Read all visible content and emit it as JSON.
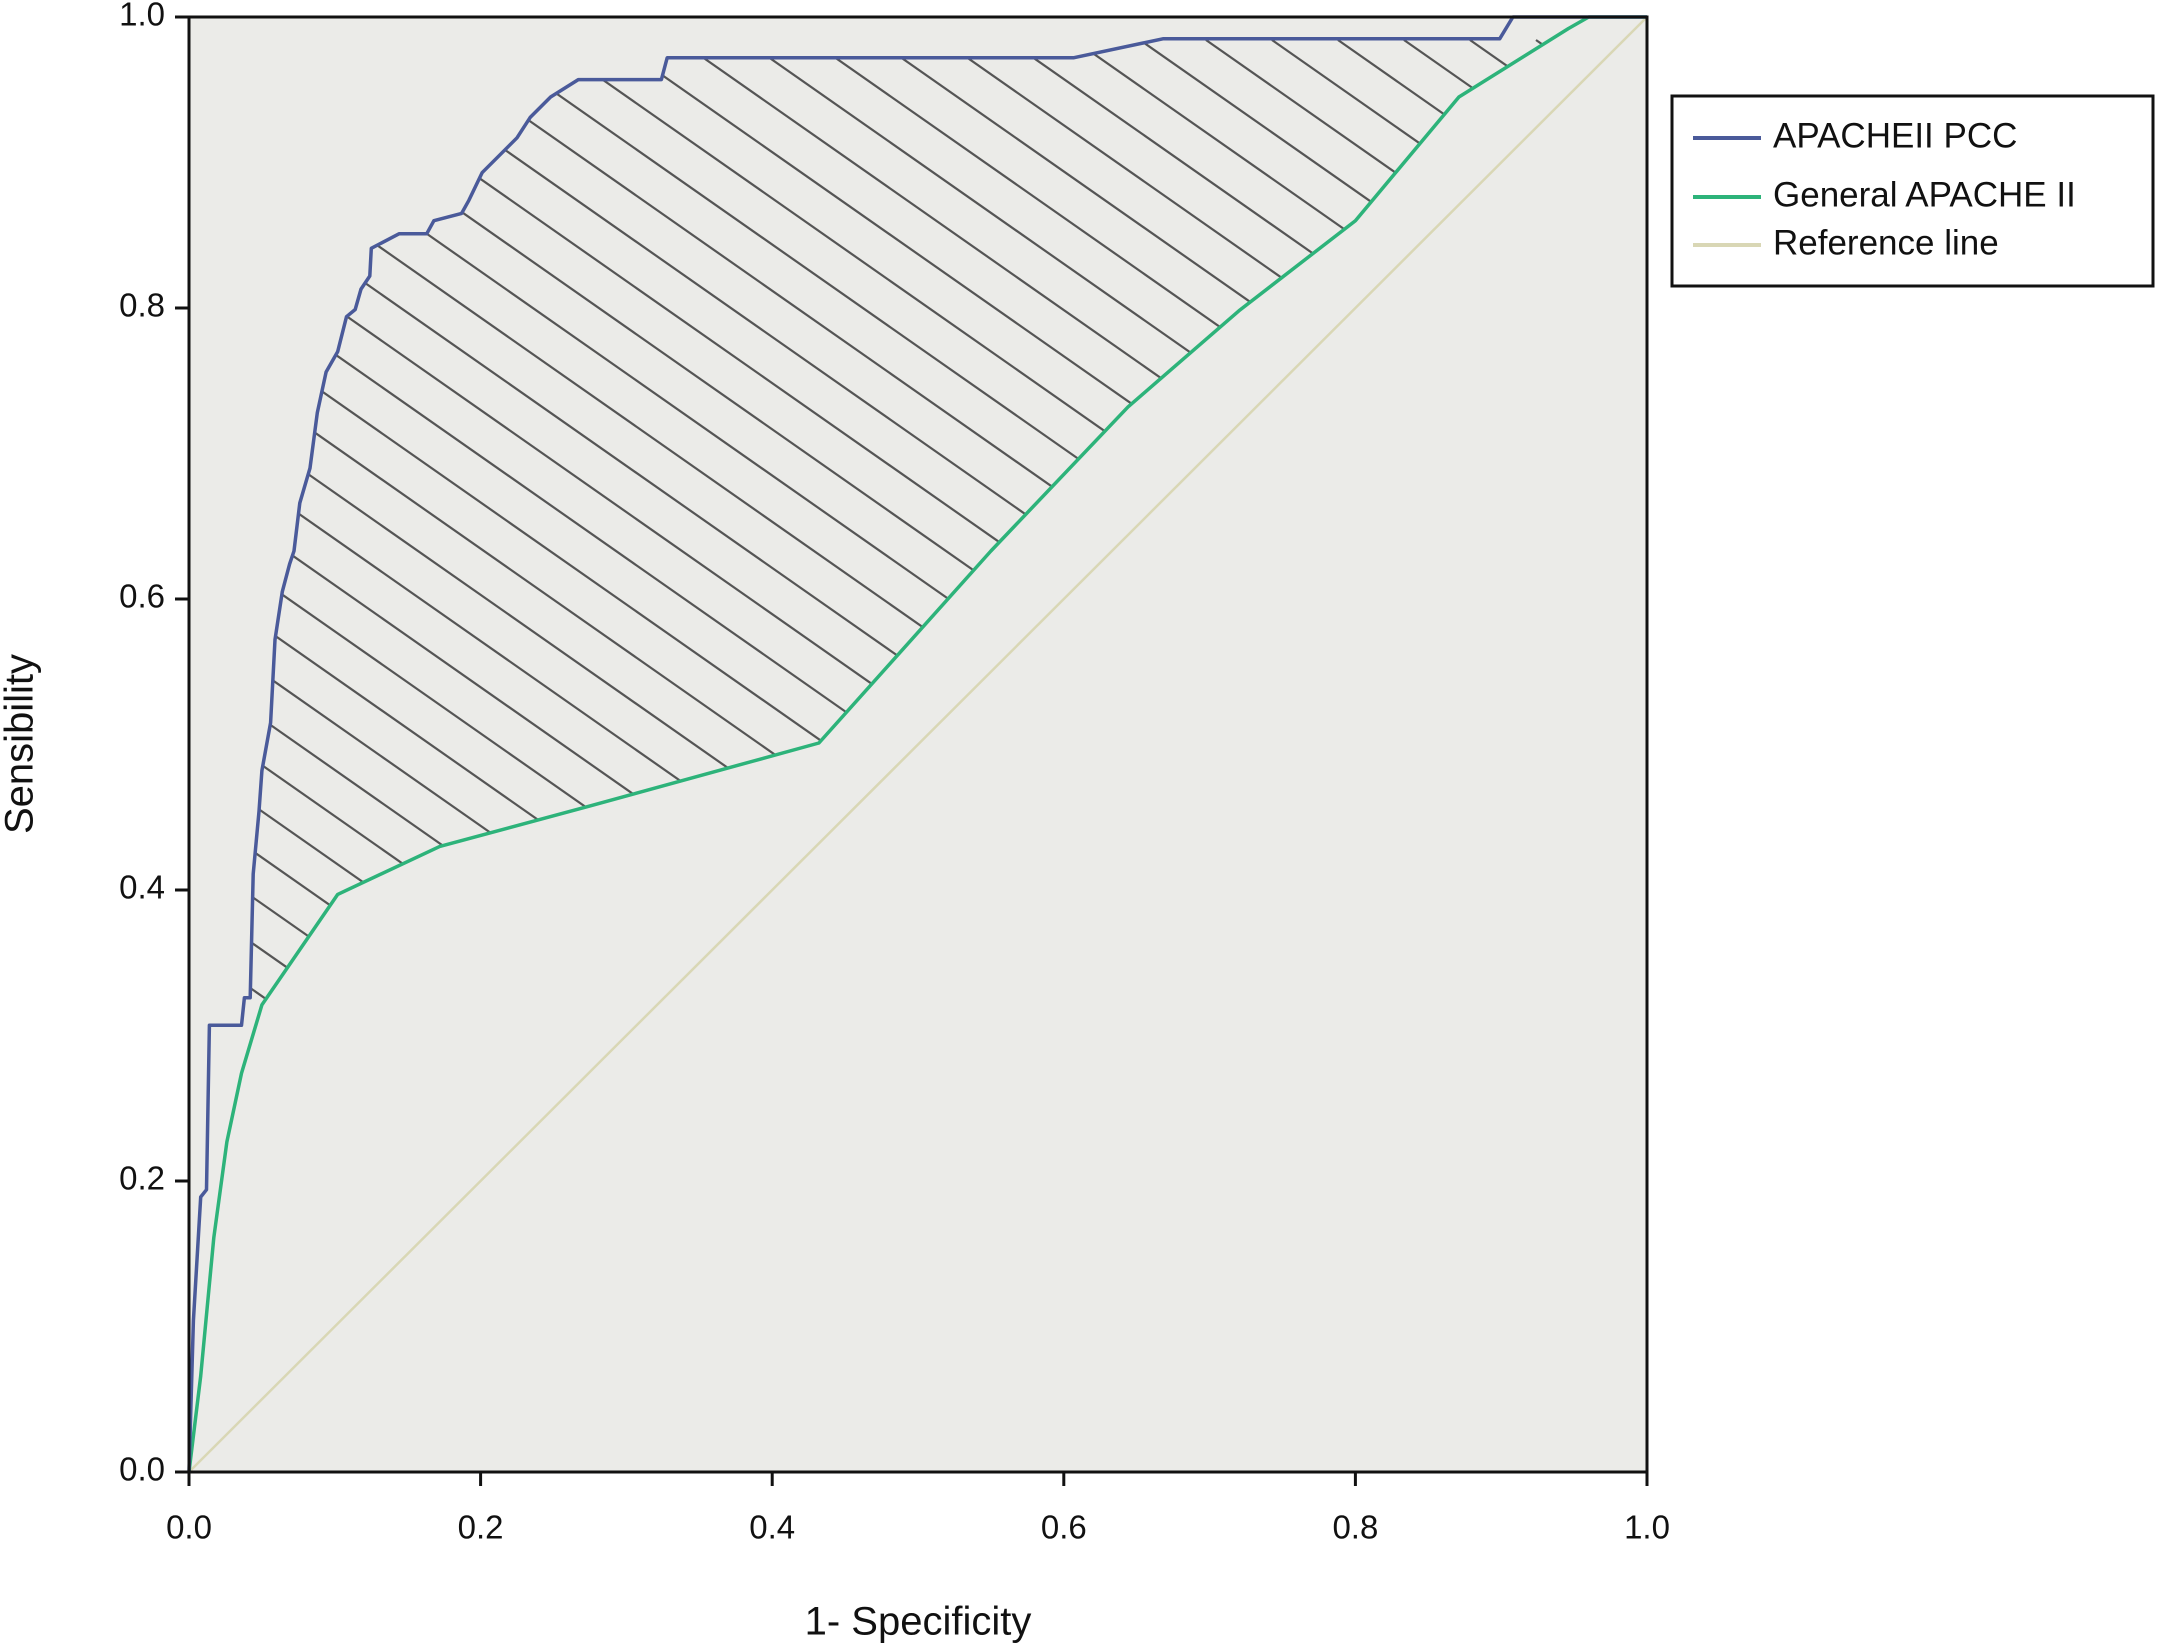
{
  "chart_data": {
    "type": "line",
    "x_label": "1- Specificity",
    "y_label": "Sensibility",
    "xlim": [
      0,
      1
    ],
    "ylim": [
      0,
      1
    ],
    "xticks": [
      {
        "value": 0,
        "label": "0.0"
      },
      0.2,
      0.4,
      0.6,
      0.8,
      {
        "value": 1,
        "label": "1.0"
      }
    ],
    "yticks": [
      {
        "value": 0,
        "label": "0.0"
      },
      0.2,
      0.4,
      0.6,
      0.8,
      {
        "value": 1,
        "label": "1.0"
      }
    ],
    "grid": false,
    "legend": "outside-right",
    "series": [
      {
        "name": "APACHEII PCC",
        "color": "#4a5a9a",
        "x": [
          0,
          0.003,
          0.008,
          0.012,
          0.014,
          0.036,
          0.038,
          0.042,
          0.044,
          0.048,
          0.05,
          0.056,
          0.059,
          0.064,
          0.069,
          0.072,
          0.076,
          0.083,
          0.088,
          0.094,
          0.102,
          0.108,
          0.114,
          0.118,
          0.124,
          0.125,
          0.144,
          0.163,
          0.168,
          0.187,
          0.192,
          0.201,
          0.215,
          0.225,
          0.234,
          0.248,
          0.267,
          0.324,
          0.328,
          0.607,
          0.668,
          0.899,
          0.908,
          1
        ],
        "values": [
          0,
          0.104,
          0.189,
          0.194,
          0.307,
          0.307,
          0.326,
          0.326,
          0.411,
          0.454,
          0.482,
          0.515,
          0.572,
          0.605,
          0.624,
          0.633,
          0.666,
          0.69,
          0.728,
          0.756,
          0.77,
          0.794,
          0.799,
          0.813,
          0.822,
          0.841,
          0.851,
          0.851,
          0.86,
          0.865,
          0.874,
          0.893,
          0.907,
          0.917,
          0.931,
          0.945,
          0.957,
          0.957,
          0.972,
          0.972,
          0.985,
          0.985,
          1,
          1
        ]
      },
      {
        "name": "General APACHE II",
        "color": "#2db37a",
        "x": [
          0,
          0.008,
          0.017,
          0.026,
          0.036,
          0.05,
          0.102,
          0.172,
          0.276,
          0.432,
          0.55,
          0.644,
          0.72,
          0.8,
          0.871,
          0.946,
          0.96,
          1
        ],
        "values": [
          0,
          0.066,
          0.161,
          0.227,
          0.274,
          0.321,
          0.397,
          0.43,
          0.458,
          0.501,
          0.633,
          0.732,
          0.798,
          0.86,
          0.945,
          0.992,
          1,
          1
        ]
      },
      {
        "name": "Reference line",
        "color": "#d9d7b5",
        "x": [
          0,
          1
        ],
        "values": [
          0,
          1
        ]
      }
    ]
  }
}
